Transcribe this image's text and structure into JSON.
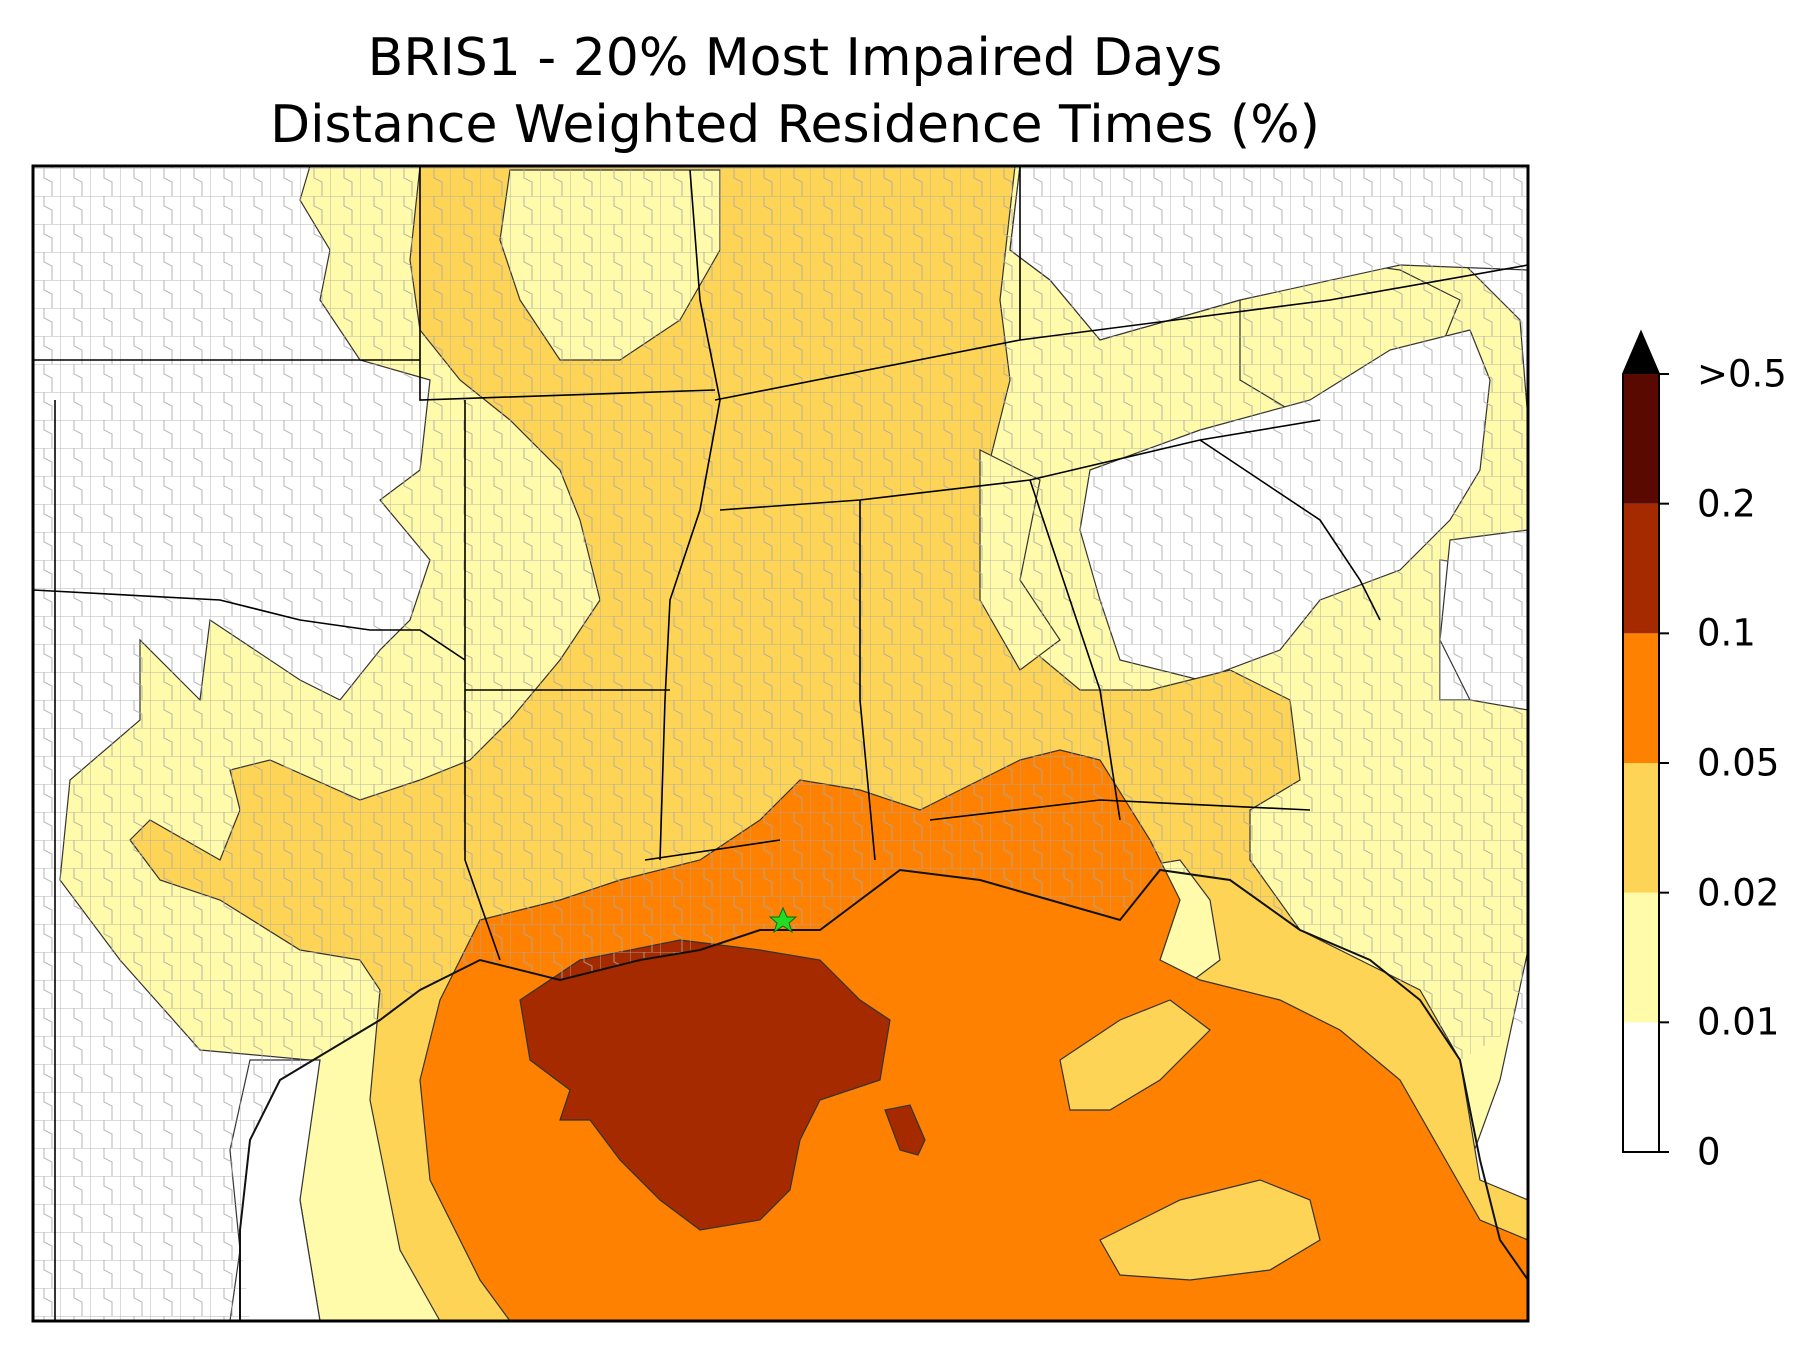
{
  "title": {
    "line1": "BRIS1 - 20% Most Impaired Days",
    "line2": "Distance Weighted Residence Times (%)"
  },
  "colorbar": {
    "levels": [
      {
        "label": "0",
        "value": 0,
        "color": "#ffffff"
      },
      {
        "label": "0.01",
        "value": 0.01,
        "color": "#fffbaa"
      },
      {
        "label": "0.02",
        "value": 0.02,
        "color": "#fed456"
      },
      {
        "label": "0.05",
        "value": 0.05,
        "color": "#fe8102"
      },
      {
        "label": "0.1",
        "value": 0.1,
        "color": "#a52a00"
      },
      {
        "label": "0.2",
        "value": 0.2,
        "color": "#5a0900"
      },
      {
        "label": ">0.5",
        "value": 0.5,
        "color": "#000000"
      }
    ],
    "extend": "max"
  },
  "marker": {
    "icon": "green-star-icon",
    "color": "#22dd22"
  },
  "colors": {
    "band_001": "#fffbaa",
    "band_002": "#fed456",
    "band_005": "#fe8102",
    "band_01": "#a52a00",
    "band_02": "#5a0900",
    "extend": "#000000",
    "county_lines": "#a8a8a8",
    "state_lines": "#000000"
  }
}
